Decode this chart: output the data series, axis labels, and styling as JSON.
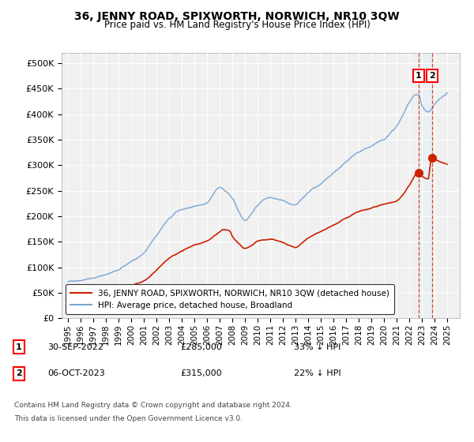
{
  "title": "36, JENNY ROAD, SPIXWORTH, NORWICH, NR10 3QW",
  "subtitle": "Price paid vs. HM Land Registry's House Price Index (HPI)",
  "legend_line1": "36, JENNY ROAD, SPIXWORTH, NORWICH, NR10 3QW (detached house)",
  "legend_line2": "HPI: Average price, detached house, Broadland",
  "footnote1": "Contains HM Land Registry data © Crown copyright and database right 2024.",
  "footnote2": "This data is licensed under the Open Government Licence v3.0.",
  "table_rows": [
    {
      "num": "1",
      "date": "30-SEP-2022",
      "price": "£285,000",
      "pct": "33% ↓ HPI"
    },
    {
      "num": "2",
      "date": "06-OCT-2023",
      "price": "£315,000",
      "pct": "22% ↓ HPI"
    }
  ],
  "sale_prices": [
    285000,
    315000
  ],
  "hpi_color": "#7ba7d4",
  "price_color": "#cc2200",
  "dashed_line_color": "#cc2200",
  "shade_color": "#ddeeff",
  "ylim": [
    0,
    520000
  ],
  "yticks": [
    0,
    50000,
    100000,
    150000,
    200000,
    250000,
    300000,
    350000,
    400000,
    450000,
    500000
  ],
  "xlim": [
    1994.5,
    2026.0
  ],
  "xticks": [
    1995,
    1996,
    1997,
    1998,
    1999,
    2000,
    2001,
    2002,
    2003,
    2004,
    2005,
    2006,
    2007,
    2008,
    2009,
    2010,
    2011,
    2012,
    2013,
    2014,
    2015,
    2016,
    2017,
    2018,
    2019,
    2020,
    2021,
    2022,
    2023,
    2024,
    2025
  ],
  "background_color": "#ffffff",
  "plot_bg_color": "#f0f0f0"
}
